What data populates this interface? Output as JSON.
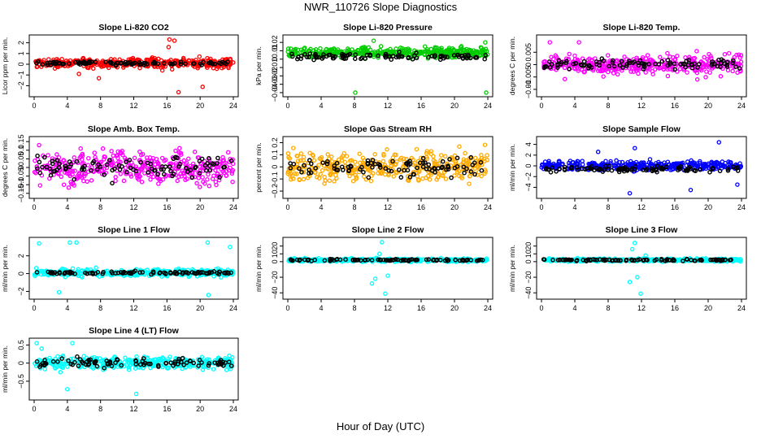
{
  "page": {
    "title": "NWR_110726  Slope Diagnostics",
    "xlabel": "Hour of Day (UTC)"
  },
  "chart_data": [
    {
      "type": "scatter",
      "title": "Slope Li-820 CO2",
      "ylabel": "Licor ppm per min.",
      "color": "#ff0000",
      "xlim": [
        0,
        24
      ],
      "ylim": [
        -2.8,
        2.5
      ],
      "yticks": [
        -2,
        -1,
        0,
        1,
        2
      ],
      "xticks": [
        0,
        4,
        8,
        12,
        16,
        20,
        24
      ],
      "cloud": {
        "center": 0.1,
        "spread": 0.7
      },
      "black": {
        "center": 0.1,
        "spread": 0.25
      },
      "outliers": [
        [
          16.3,
          2.3
        ],
        [
          16.9,
          2.2
        ],
        [
          16.2,
          1.6
        ],
        [
          17.4,
          -2.6
        ],
        [
          20.3,
          -2.1
        ],
        [
          7.8,
          -1.3
        ],
        [
          5.4,
          -0.9
        ]
      ]
    },
    {
      "type": "scatter",
      "title": "Slope Li-820 Pressure",
      "ylabel": "kPa per min.",
      "color": "#00cc00",
      "xlim": [
        0,
        24
      ],
      "ylim": [
        -0.042,
        0.026
      ],
      "yticks": [
        -0.04,
        -0.03,
        -0.02,
        -0.01,
        0.0,
        0.01,
        0.02
      ],
      "xticks": [
        0,
        4,
        8,
        12,
        16,
        20,
        24
      ],
      "cloud": {
        "center": 0.008,
        "spread": 0.009
      },
      "black": {
        "center": 0.003,
        "spread": 0.006
      },
      "outliers": [
        [
          8.1,
          -0.04
        ],
        [
          23.8,
          -0.04
        ],
        [
          23.7,
          0.02
        ],
        [
          10.3,
          0.022
        ]
      ]
    },
    {
      "type": "scatter",
      "title": "Slope Li-820 Temp.",
      "ylabel": "degrees C per min.",
      "color": "#ff00ff",
      "xlim": [
        0,
        24
      ],
      "ylim": [
        -0.012,
        0.011
      ],
      "yticks": [
        -0.01,
        -0.005,
        0.0,
        0.005
      ],
      "xticks": [
        0,
        4,
        8,
        12,
        16,
        20,
        24
      ],
      "cloud": {
        "center": 0.0,
        "spread": 0.006
      },
      "black": {
        "center": 0.0,
        "spread": 0.003
      },
      "outliers": [
        [
          1.0,
          0.009
        ],
        [
          4.5,
          0.009
        ],
        [
          18.7,
          -0.006
        ]
      ]
    },
    {
      "type": "scatter",
      "title": "Slope Amb. Box Temp.",
      "ylabel": "degrees C per min.",
      "color": "#ff00ff",
      "xlim": [
        0,
        24
      ],
      "ylim": [
        -0.165,
        0.165
      ],
      "yticks": [
        -0.15,
        -0.1,
        -0.05,
        0.0,
        0.05,
        0.1,
        0.15
      ],
      "xticks": [
        0,
        4,
        8,
        12,
        16,
        20,
        24
      ],
      "cloud": {
        "center": 0.0,
        "spread": 0.14
      },
      "black": {
        "center": 0.0,
        "spread": 0.1
      },
      "outliers": []
    },
    {
      "type": "scatter",
      "title": "Slope Gas Stream RH",
      "ylabel": "percent per min.",
      "color": "#ffaa00",
      "xlim": [
        0,
        24
      ],
      "ylim": [
        -0.24,
        0.23
      ],
      "yticks": [
        -0.2,
        -0.1,
        0.0,
        0.1,
        0.2
      ],
      "xticks": [
        0,
        4,
        8,
        12,
        16,
        20,
        24
      ],
      "cloud": {
        "center": 0.0,
        "spread": 0.19
      },
      "black": {
        "center": 0.0,
        "spread": 0.12
      },
      "outliers": []
    },
    {
      "type": "scatter",
      "title": "Slope Sample Flow",
      "ylabel": "ml/min per min.",
      "color": "#0000ff",
      "xlim": [
        0,
        24
      ],
      "ylim": [
        -5.6,
        5.0
      ],
      "yticks": [
        -4,
        -2,
        0,
        2,
        4
      ],
      "xticks": [
        0,
        4,
        8,
        12,
        16,
        20,
        24
      ],
      "cloud": {
        "center": 0.0,
        "spread": 1.3
      },
      "black": {
        "center": -0.6,
        "spread": 0.8
      },
      "outliers": [
        [
          21.3,
          4.4
        ],
        [
          11.2,
          3.3
        ],
        [
          10.6,
          -5.1
        ],
        [
          17.9,
          -4.5
        ],
        [
          6.8,
          2.6
        ],
        [
          23.5,
          -3.5
        ]
      ]
    },
    {
      "type": "scatter",
      "title": "Slope Line 1 Flow",
      "ylabel": "ml/min per min.",
      "color": "#00ffff",
      "xlim": [
        0,
        24
      ],
      "ylim": [
        -2.6,
        3.8
      ],
      "yticks": [
        -2,
        0,
        2
      ],
      "xticks": [
        0,
        4,
        8,
        12,
        16,
        20,
        24
      ],
      "cloud": {
        "center": 0.1,
        "spread": 0.6
      },
      "black": {
        "center": 0.1,
        "spread": 0.25
      },
      "outliers": [
        [
          4.3,
          3.5
        ],
        [
          5.1,
          3.5
        ],
        [
          0.6,
          3.4
        ],
        [
          20.9,
          3.5
        ],
        [
          23.6,
          3.0
        ],
        [
          3.0,
          -2.1
        ],
        [
          21.0,
          -2.4
        ]
      ]
    },
    {
      "type": "scatter",
      "title": "Slope Line 2 Flow",
      "ylabel": "ml/min per min.",
      "color": "#00ffff",
      "xlim": [
        0,
        24
      ],
      "ylim": [
        -45,
        28
      ],
      "yticks": [
        -40,
        -20,
        0,
        10,
        20
      ],
      "xticks": [
        0,
        4,
        8,
        12,
        16,
        20,
        24
      ],
      "cloud": {
        "center": 2,
        "spread": 3
      },
      "black": {
        "center": 2,
        "spread": 2
      },
      "outliers": [
        [
          11.3,
          25
        ],
        [
          11.7,
          -41
        ],
        [
          10.5,
          -22
        ],
        [
          10.1,
          -28
        ],
        [
          11.0,
          10
        ],
        [
          12.0,
          -18
        ]
      ]
    },
    {
      "type": "scatter",
      "title": "Slope Line 3 Flow",
      "ylabel": "ml/min per min.",
      "color": "#00ffff",
      "xlim": [
        0,
        24
      ],
      "ylim": [
        -45,
        28
      ],
      "yticks": [
        -40,
        -20,
        0,
        10,
        20
      ],
      "xticks": [
        0,
        4,
        8,
        12,
        16,
        20,
        24
      ],
      "cloud": {
        "center": 2,
        "spread": 3
      },
      "black": {
        "center": 2,
        "spread": 2
      },
      "outliers": [
        [
          11.2,
          24
        ],
        [
          11.9,
          -41
        ],
        [
          10.6,
          -26
        ],
        [
          10.9,
          16
        ],
        [
          11.5,
          -20
        ],
        [
          12.5,
          8
        ]
      ]
    },
    {
      "type": "scatter",
      "title": "Slope Line 4 (LT) Flow",
      "ylabel": "ml/min per min.",
      "color": "#00ffff",
      "xlim": [
        0,
        24
      ],
      "ylim": [
        -0.95,
        0.62
      ],
      "yticks": [
        -0.5,
        0.0,
        0.5
      ],
      "xticks": [
        0,
        4,
        8,
        12,
        16,
        20,
        24
      ],
      "cloud": {
        "center": 0.0,
        "spread": 0.25
      },
      "black": {
        "center": 0.0,
        "spread": 0.18
      },
      "outliers": [
        [
          0.3,
          0.55
        ],
        [
          4.6,
          0.55
        ],
        [
          12.3,
          -0.85
        ],
        [
          4.0,
          -0.72
        ],
        [
          0.9,
          0.4
        ]
      ]
    }
  ]
}
